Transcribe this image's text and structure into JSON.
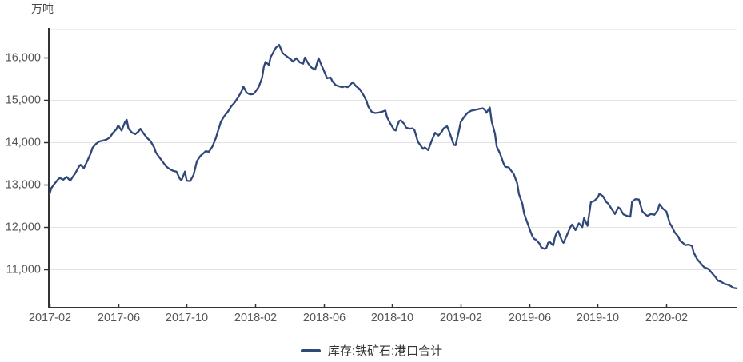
{
  "chart": {
    "unit_label": "万吨"
  },
  "chart_data": {
    "type": "line",
    "title": "",
    "y_unit": "万吨",
    "legend": {
      "position": "bottom",
      "items": [
        "库存:铁矿石:港口合计"
      ]
    },
    "x_axis": {
      "kind": "time",
      "tick_labels": [
        "2017-02",
        "2017-06",
        "2017-10",
        "2018-02",
        "2018-06",
        "2018-10",
        "2019-02",
        "2019-06",
        "2019-10",
        "2020-02"
      ],
      "tick_month_offsets": [
        0,
        4,
        8,
        12,
        16,
        20,
        24,
        28,
        32,
        36
      ],
      "domain_months": [
        0,
        40.1
      ]
    },
    "y_axis": {
      "ticks": [
        11000,
        12000,
        13000,
        14000,
        15000,
        16000
      ],
      "tick_labels": [
        "11,000",
        "12,000",
        "13,000",
        "14,000",
        "15,000",
        "16,000"
      ],
      "domain": [
        10100,
        16660
      ],
      "grid": true
    },
    "series": [
      {
        "name": "库存:铁矿石:港口合计",
        "color": "#2f4779",
        "points": [
          [
            0,
            12780
          ],
          [
            0.1,
            12920
          ],
          [
            0.3,
            13030
          ],
          [
            0.5,
            13130
          ],
          [
            0.6,
            13160
          ],
          [
            0.8,
            13120
          ],
          [
            1.0,
            13185
          ],
          [
            1.2,
            13095
          ],
          [
            1.5,
            13270
          ],
          [
            1.7,
            13420
          ],
          [
            1.8,
            13470
          ],
          [
            2.0,
            13390
          ],
          [
            2.2,
            13560
          ],
          [
            2.4,
            13740
          ],
          [
            2.5,
            13870
          ],
          [
            2.7,
            13960
          ],
          [
            2.9,
            14020
          ],
          [
            3.1,
            14040
          ],
          [
            3.3,
            14060
          ],
          [
            3.5,
            14110
          ],
          [
            3.7,
            14225
          ],
          [
            3.9,
            14310
          ],
          [
            4.0,
            14400
          ],
          [
            4.2,
            14275
          ],
          [
            4.4,
            14480
          ],
          [
            4.5,
            14530
          ],
          [
            4.6,
            14330
          ],
          [
            4.8,
            14230
          ],
          [
            5.0,
            14195
          ],
          [
            5.2,
            14260
          ],
          [
            5.3,
            14320
          ],
          [
            5.5,
            14200
          ],
          [
            5.7,
            14100
          ],
          [
            5.9,
            14020
          ],
          [
            6.1,
            13880
          ],
          [
            6.2,
            13760
          ],
          [
            6.4,
            13650
          ],
          [
            6.6,
            13540
          ],
          [
            6.8,
            13430
          ],
          [
            7.0,
            13370
          ],
          [
            7.2,
            13330
          ],
          [
            7.4,
            13310
          ],
          [
            7.6,
            13140
          ],
          [
            7.7,
            13105
          ],
          [
            7.9,
            13310
          ],
          [
            8.0,
            13095
          ],
          [
            8.2,
            13085
          ],
          [
            8.4,
            13230
          ],
          [
            8.6,
            13560
          ],
          [
            8.8,
            13680
          ],
          [
            9.0,
            13750
          ],
          [
            9.1,
            13790
          ],
          [
            9.3,
            13780
          ],
          [
            9.5,
            13900
          ],
          [
            9.7,
            14100
          ],
          [
            9.8,
            14230
          ],
          [
            10.0,
            14490
          ],
          [
            10.2,
            14620
          ],
          [
            10.4,
            14720
          ],
          [
            10.6,
            14850
          ],
          [
            10.8,
            14940
          ],
          [
            11.0,
            15060
          ],
          [
            11.2,
            15200
          ],
          [
            11.3,
            15320
          ],
          [
            11.5,
            15170
          ],
          [
            11.7,
            15130
          ],
          [
            11.9,
            15140
          ],
          [
            12.0,
            15190
          ],
          [
            12.2,
            15300
          ],
          [
            12.4,
            15520
          ],
          [
            12.5,
            15780
          ],
          [
            12.6,
            15900
          ],
          [
            12.8,
            15825
          ],
          [
            12.9,
            16010
          ],
          [
            13.2,
            16230
          ],
          [
            13.4,
            16300
          ],
          [
            13.6,
            16105
          ],
          [
            13.9,
            16010
          ],
          [
            14.1,
            15950
          ],
          [
            14.2,
            15905
          ],
          [
            14.4,
            15985
          ],
          [
            14.6,
            15885
          ],
          [
            14.8,
            15855
          ],
          [
            14.9,
            16000
          ],
          [
            15.1,
            15855
          ],
          [
            15.3,
            15760
          ],
          [
            15.5,
            15715
          ],
          [
            15.7,
            15985
          ],
          [
            15.9,
            15790
          ],
          [
            16.1,
            15605
          ],
          [
            16.2,
            15510
          ],
          [
            16.4,
            15530
          ],
          [
            16.5,
            15445
          ],
          [
            16.7,
            15350
          ],
          [
            16.9,
            15320
          ],
          [
            17.1,
            15300
          ],
          [
            17.2,
            15320
          ],
          [
            17.4,
            15300
          ],
          [
            17.6,
            15380
          ],
          [
            17.7,
            15415
          ],
          [
            17.9,
            15320
          ],
          [
            18.1,
            15255
          ],
          [
            18.3,
            15130
          ],
          [
            18.5,
            14975
          ],
          [
            18.6,
            14845
          ],
          [
            18.8,
            14720
          ],
          [
            19.0,
            14690
          ],
          [
            19.2,
            14700
          ],
          [
            19.4,
            14720
          ],
          [
            19.6,
            14750
          ],
          [
            19.7,
            14590
          ],
          [
            19.9,
            14435
          ],
          [
            20.1,
            14300
          ],
          [
            20.2,
            14280
          ],
          [
            20.4,
            14500
          ],
          [
            20.5,
            14520
          ],
          [
            20.7,
            14435
          ],
          [
            20.8,
            14350
          ],
          [
            21.0,
            14320
          ],
          [
            21.2,
            14330
          ],
          [
            21.3,
            14285
          ],
          [
            21.5,
            14010
          ],
          [
            21.8,
            13845
          ],
          [
            21.9,
            13880
          ],
          [
            22.1,
            13815
          ],
          [
            22.3,
            14035
          ],
          [
            22.5,
            14225
          ],
          [
            22.7,
            14160
          ],
          [
            22.9,
            14255
          ],
          [
            23.0,
            14330
          ],
          [
            23.2,
            14380
          ],
          [
            23.3,
            14285
          ],
          [
            23.6,
            13940
          ],
          [
            23.7,
            13930
          ],
          [
            23.9,
            14285
          ],
          [
            24.0,
            14475
          ],
          [
            24.2,
            14600
          ],
          [
            24.4,
            14695
          ],
          [
            24.6,
            14745
          ],
          [
            24.9,
            14770
          ],
          [
            25.1,
            14790
          ],
          [
            25.3,
            14800
          ],
          [
            25.4,
            14770
          ],
          [
            25.5,
            14695
          ],
          [
            25.7,
            14820
          ],
          [
            25.8,
            14505
          ],
          [
            26.0,
            14200
          ],
          [
            26.1,
            13900
          ],
          [
            26.3,
            13730
          ],
          [
            26.5,
            13500
          ],
          [
            26.6,
            13420
          ],
          [
            26.8,
            13410
          ],
          [
            27.0,
            13300
          ],
          [
            27.1,
            13250
          ],
          [
            27.3,
            13030
          ],
          [
            27.4,
            12780
          ],
          [
            27.6,
            12550
          ],
          [
            27.7,
            12320
          ],
          [
            27.9,
            12090
          ],
          [
            28.1,
            11870
          ],
          [
            28.2,
            11775
          ],
          [
            28.3,
            11720
          ],
          [
            28.4,
            11700
          ],
          [
            28.6,
            11610
          ],
          [
            28.7,
            11525
          ],
          [
            28.9,
            11485
          ],
          [
            29.0,
            11510
          ],
          [
            29.1,
            11630
          ],
          [
            29.2,
            11650
          ],
          [
            29.4,
            11570
          ],
          [
            29.5,
            11760
          ],
          [
            29.6,
            11870
          ],
          [
            29.7,
            11900
          ],
          [
            29.9,
            11690
          ],
          [
            30.0,
            11630
          ],
          [
            30.2,
            11810
          ],
          [
            30.4,
            12000
          ],
          [
            30.5,
            12060
          ],
          [
            30.7,
            11930
          ],
          [
            30.9,
            12090
          ],
          [
            31.1,
            12000
          ],
          [
            31.2,
            12215
          ],
          [
            31.4,
            12030
          ],
          [
            31.6,
            12590
          ],
          [
            31.8,
            12620
          ],
          [
            32.0,
            12700
          ],
          [
            32.1,
            12790
          ],
          [
            32.3,
            12730
          ],
          [
            32.5,
            12590
          ],
          [
            32.6,
            12560
          ],
          [
            32.8,
            12435
          ],
          [
            33.0,
            12310
          ],
          [
            33.2,
            12465
          ],
          [
            33.3,
            12435
          ],
          [
            33.5,
            12300
          ],
          [
            33.7,
            12265
          ],
          [
            33.9,
            12245
          ],
          [
            34.0,
            12600
          ],
          [
            34.2,
            12660
          ],
          [
            34.4,
            12650
          ],
          [
            34.6,
            12370
          ],
          [
            34.8,
            12290
          ],
          [
            34.9,
            12265
          ],
          [
            35.1,
            12310
          ],
          [
            35.3,
            12290
          ],
          [
            35.5,
            12400
          ],
          [
            35.6,
            12540
          ],
          [
            35.8,
            12435
          ],
          [
            36.0,
            12370
          ],
          [
            36.2,
            12090
          ],
          [
            36.3,
            12030
          ],
          [
            36.5,
            11870
          ],
          [
            36.7,
            11775
          ],
          [
            36.8,
            11680
          ],
          [
            37.0,
            11620
          ],
          [
            37.1,
            11575
          ],
          [
            37.3,
            11590
          ],
          [
            37.5,
            11555
          ],
          [
            37.6,
            11400
          ],
          [
            37.8,
            11245
          ],
          [
            38.0,
            11150
          ],
          [
            38.2,
            11055
          ],
          [
            38.4,
            11025
          ],
          [
            38.5,
            10995
          ],
          [
            38.7,
            10900
          ],
          [
            38.9,
            10805
          ],
          [
            39.0,
            10740
          ],
          [
            39.2,
            10710
          ],
          [
            39.4,
            10660
          ],
          [
            39.6,
            10640
          ],
          [
            39.8,
            10600
          ],
          [
            39.9,
            10570
          ],
          [
            40.1,
            10555
          ]
        ]
      }
    ],
    "style": {
      "grid_color": "#e2e2e2",
      "axis_color": "#333333",
      "axis_label_color": "#555555",
      "background": "#ffffff"
    }
  }
}
